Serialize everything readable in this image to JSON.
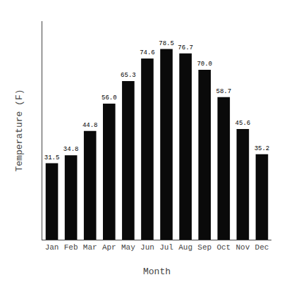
{
  "chart_data": {
    "type": "bar",
    "categories": [
      "Jan",
      "Feb",
      "Mar",
      "Apr",
      "May",
      "Jun",
      "Jul",
      "Aug",
      "Sep",
      "Oct",
      "Nov",
      "Dec"
    ],
    "values": [
      31.5,
      34.8,
      44.8,
      56.0,
      65.3,
      74.6,
      78.5,
      76.7,
      70.0,
      58.7,
      45.6,
      35.2
    ],
    "value_labels": [
      "31.5",
      "34.8",
      "44.8",
      "56.0",
      "65.3",
      "74.6",
      "78.5",
      "76.7",
      "70.0",
      "58.7",
      "45.6",
      "35.2"
    ],
    "color": "#0a0a0a",
    "xlabel": "Month",
    "ylabel": "Temperature (F)",
    "ylim": [
      0,
      90
    ],
    "grid": false,
    "data_labels": true,
    "tick_labels": "x"
  }
}
